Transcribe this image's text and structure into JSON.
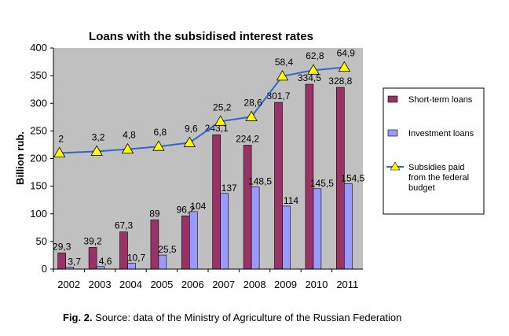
{
  "chart_data": {
    "type": "bar",
    "title": "Loans with the subsidised interest rates",
    "ylabel": "Billion rub.",
    "xlabel": "",
    "ylim": [
      0,
      400
    ],
    "y_ticks": [
      "0",
      "50",
      "100",
      "150",
      "200",
      "250",
      "300",
      "350",
      "400"
    ],
    "grid": false,
    "legend_position": "right",
    "categories": [
      "2002",
      "2003",
      "2004",
      "2005",
      "2006",
      "2007",
      "2008",
      "2009",
      "2010",
      "2011"
    ],
    "series": [
      {
        "name": "Short-term loans",
        "type": "bar",
        "color": "#993366",
        "values": [
          29.3,
          39.2,
          67.3,
          89,
          96.2,
          243.1,
          224.2,
          301.7,
          334.5,
          328.8
        ],
        "labels": [
          "29,3",
          "39,2",
          "67,3",
          "89",
          "96,2",
          "243,1",
          "224,2",
          "301,7",
          "334,5",
          "328,8"
        ]
      },
      {
        "name": "Investment loans",
        "type": "bar",
        "color": "#9999ff",
        "values": [
          3.7,
          4.6,
          10.7,
          25.5,
          104,
          137,
          148.5,
          114,
          145.5,
          154.5
        ],
        "labels": [
          "3,7",
          "4,6",
          "10,7",
          "25,5",
          "104",
          "137",
          "148,5",
          "114",
          "145,5",
          "154,5"
        ]
      },
      {
        "name": "Subsidies paid from the federal budget",
        "type": "line",
        "color": "#3366cc",
        "marker_color": "#ffff00",
        "values": [
          2,
          3.2,
          4.8,
          6.8,
          9.6,
          25.2,
          28.6,
          58.4,
          62.8,
          64.9
        ],
        "labels": [
          "2",
          "3,2",
          "4,8",
          "6,8",
          "9,6",
          "25,2",
          "28,6",
          "58,4",
          "62,8",
          "64,9"
        ]
      }
    ]
  },
  "legend": {
    "items": [
      {
        "lines": [
          "Short-term loans"
        ]
      },
      {
        "lines": [
          "Investment loans"
        ]
      },
      {
        "lines": [
          "Subsidies paid",
          "from the federal",
          "budget"
        ]
      }
    ]
  },
  "caption": {
    "fig": "Fig. 2.",
    "text": " Source: data of the Ministry of Agriculture of the Russian Federation"
  },
  "colors": {
    "plot_background": "#c0c0c0",
    "axis": "#000000"
  }
}
